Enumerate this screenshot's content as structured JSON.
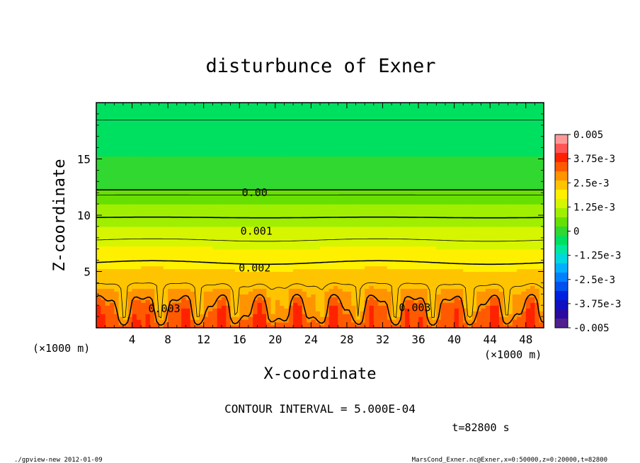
{
  "chart_data": {
    "type": "contour",
    "title": "disturbunce of Exner",
    "xlabel": "X-coordinate",
    "ylabel": "Z-coordinate",
    "x_unit_note": "(×1000 m)",
    "y_unit_note": "(×1000 m)",
    "xlim": [
      0,
      50
    ],
    "ylim": [
      0,
      20
    ],
    "x_ticks": [
      4,
      8,
      12,
      16,
      20,
      24,
      28,
      32,
      36,
      40,
      44,
      48
    ],
    "y_ticks": [
      5,
      10,
      15
    ],
    "colorbar": {
      "min": -0.005,
      "max": 0.005,
      "labels": [
        "0.005",
        "3.75e-3",
        "2.5e-3",
        "1.25e-3",
        "0",
        "-1.25e-3",
        "-2.5e-3",
        "-3.75e-3",
        "-0.005"
      ],
      "colors": [
        "#ff9999",
        "#ff5555",
        "#ff2200",
        "#ff5a00",
        "#ff9400",
        "#ffc400",
        "#fff000",
        "#d6f500",
        "#a0ef00",
        "#66e000",
        "#30d830",
        "#00e060",
        "#00e8a0",
        "#00d8e0",
        "#00b0ff",
        "#0080ff",
        "#0050f0",
        "#0020e0",
        "#1010c0",
        "#2a0aa0",
        "#50208e"
      ]
    },
    "contour_labels": [
      {
        "text": "0.00",
        "value": 0.0,
        "x": 17.7,
        "z": 12.0
      },
      {
        "text": "0.001",
        "value": 0.001,
        "x": 17.9,
        "z": 8.6
      },
      {
        "text": "0.002",
        "value": 0.002,
        "x": 17.7,
        "z": 5.3
      },
      {
        "text": "0.003",
        "value": 0.003,
        "x": 7.6,
        "z": 1.7
      },
      {
        "text": "0.003",
        "value": 0.003,
        "x": 35.6,
        "z": 1.8
      }
    ],
    "contour_interval_text": "CONTOUR INTERVAL = 5.000E-04",
    "time_text": "t=82800 s"
  },
  "footer": {
    "left": "./gpview-new   2012-01-09",
    "right": "MarsCond_Exner.nc@Exner,x=0:50000,z=0:20000,t=82800"
  }
}
